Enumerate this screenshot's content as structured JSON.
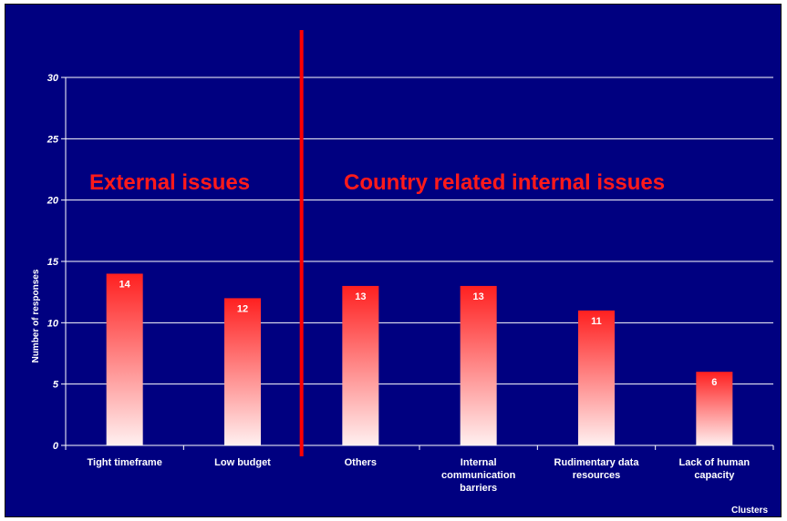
{
  "chart_data": {
    "type": "bar",
    "title": "",
    "xlabel": "Clusters",
    "ylabel": "Number of responses",
    "categories": [
      [
        "Tight timeframe"
      ],
      [
        "Low budget"
      ],
      [
        "Others"
      ],
      [
        "Internal",
        "communication",
        "barriers"
      ],
      [
        "Rudimentary data",
        "resources"
      ],
      [
        "Lack of human",
        "capacity"
      ]
    ],
    "values": [
      14,
      12,
      13,
      13,
      11,
      6
    ],
    "ylim": [
      0,
      30
    ],
    "yticks": [
      0,
      5,
      10,
      15,
      20,
      25,
      30
    ],
    "grid": true,
    "data_labels": true,
    "annotations": [
      "External issues",
      "Country related internal issues"
    ],
    "divider_after_category_index": 1
  },
  "colors": {
    "background": "#000080",
    "gridline": "#ffffff",
    "bar_top": "#ff2020",
    "bar_bottom": "#fff0f0",
    "divider": "#ff0000",
    "annotation": "#ff1a1a"
  }
}
